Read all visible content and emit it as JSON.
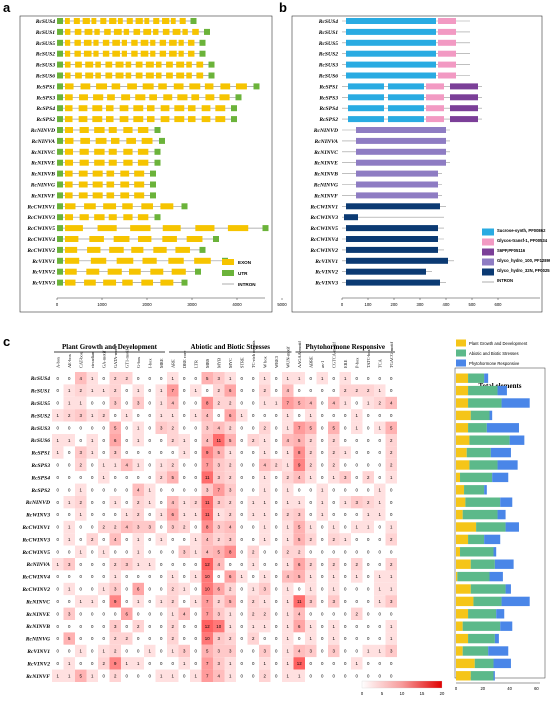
{
  "panel_a": {
    "letter": "a",
    "genes": [
      "RcSUS4",
      "RcSUS1",
      "RcSUS5",
      "RcSUS2",
      "RcSUS3",
      "RcSUS6",
      "RcSPS1",
      "RcSPS3",
      "RcSPS4",
      "RcSPS2",
      "RcNINVD",
      "RcNINVA",
      "RcNINVC",
      "RcNINVE",
      "RcNINVB",
      "RcNINVG",
      "RcNINVF",
      "RcCWINV1",
      "RcCWINV3",
      "RcCWINV5",
      "RcCWINV4",
      "RcCWINV2",
      "RcVINV1",
      "RcVINV2",
      "RcVINV3"
    ],
    "legend": [
      {
        "label": "EXON",
        "color": "#F6C400"
      },
      {
        "label": "UTR",
        "color": "#6BB33A"
      },
      {
        "label": "INTRON",
        "color": "#888888"
      }
    ],
    "axis_ticks": [
      "0",
      "1000",
      "2000",
      "3000",
      "4000",
      "5000"
    ],
    "colors": {
      "exon": "#F6C400",
      "utr": "#6BB33A",
      "intron": "#9a9a9a"
    }
  },
  "panel_b": {
    "letter": "b",
    "genes": [
      "RcSUS4",
      "RcSUS1",
      "RcSUS5",
      "RcSUS2",
      "RcSUS3",
      "RcSUS6",
      "RcSPS1",
      "RcSPS3",
      "RcSPS4",
      "RcSPS2",
      "RcNINVD",
      "RcNINVA",
      "RcNINVC",
      "RcNINVE",
      "RcNINVB",
      "RcNINVG",
      "RcNINVF",
      "RcCWINV1",
      "RcCWINV3",
      "RcCWINV5",
      "RcCWINV4",
      "RcCWINV2",
      "RcVINV1",
      "RcVINV2",
      "RcVINV3"
    ],
    "legend": [
      {
        "label": "Sucrose-synth, PF00862",
        "color": "#29ABE2"
      },
      {
        "label": "Glycos-transf-1, PF00534",
        "color": "#F29AC3"
      },
      {
        "label": "S6PP,PF05116",
        "color": "#7B3F98"
      },
      {
        "label": "Glyco_hydro_100, PF12899",
        "color": "#8E7CC3"
      },
      {
        "label": "Glyco_hydro_32N, PF00251",
        "color": "#0B3A73"
      },
      {
        "label": "INTRON",
        "color": "#888888"
      }
    ],
    "axis_ticks": [
      "0",
      "100",
      "200",
      "300",
      "400",
      "500",
      "600"
    ]
  },
  "panel_c": {
    "letter": "c",
    "groups": [
      "Plant Growth and Development",
      "Abiotic and Biotic Stresses",
      "Phytohormone Responsive"
    ],
    "columns": [
      "A-box",
      "AE-box",
      "CAT-box",
      "circadian",
      "GA-motif",
      "GATA-motif",
      "GT1-motif",
      "G-box",
      "I-box",
      "MRE",
      "ARE",
      "DRE core",
      "LTR",
      "MBS",
      "MYB",
      "MYC",
      "STRE",
      "TC-rich repeats",
      "W box",
      "WRE3",
      "WUN-motif",
      "AAGAA-motif",
      "ABRE",
      "as-1",
      "CGTCA-motif",
      "ERE",
      "P-box",
      "TATC-box",
      "TCA",
      "TGACG-motif"
    ],
    "rows": [
      {
        "gene": "RcSUS4",
        "values": [
          0,
          0,
          4,
          1,
          0,
          2,
          2,
          0,
          0,
          0,
          1,
          0,
          0,
          5,
          3,
          1,
          0,
          0,
          1,
          0,
          1,
          1,
          0,
          1,
          0,
          1,
          0,
          0,
          0,
          0
        ]
      },
      {
        "gene": "RcSUS1",
        "values": [
          0,
          1,
          2,
          1,
          1,
          2,
          0,
          1,
          0,
          1,
          7,
          0,
          1,
          0,
          2,
          6,
          0,
          0,
          2,
          0,
          4,
          0,
          0,
          0,
          0,
          2,
          2,
          2,
          1,
          0
        ]
      },
      {
        "gene": "RcSUS5",
        "values": [
          0,
          1,
          1,
          0,
          0,
          3,
          0,
          3,
          0,
          1,
          4,
          0,
          0,
          8,
          2,
          2,
          0,
          0,
          1,
          1,
          7,
          5,
          4,
          0,
          4,
          1,
          0,
          1,
          2,
          4
        ]
      },
      {
        "gene": "RcSUS2",
        "values": [
          1,
          2,
          3,
          1,
          2,
          0,
          1,
          0,
          0,
          1,
          1,
          0,
          1,
          4,
          0,
          6,
          1,
          0,
          0,
          0,
          1,
          0,
          1,
          0,
          0,
          0,
          1,
          0,
          0,
          0
        ]
      },
      {
        "gene": "RcSUS3",
        "values": [
          0,
          0,
          0,
          0,
          0,
          5,
          0,
          1,
          0,
          3,
          2,
          0,
          0,
          3,
          4,
          2,
          0,
          0,
          2,
          0,
          1,
          7,
          5,
          0,
          5,
          0,
          1,
          0,
          1,
          5
        ]
      },
      {
        "gene": "RcSUS6",
        "values": [
          1,
          1,
          0,
          1,
          0,
          6,
          0,
          1,
          0,
          0,
          2,
          1,
          0,
          4,
          11,
          5,
          0,
          2,
          1,
          0,
          4,
          5,
          2,
          0,
          2,
          0,
          0,
          0,
          0,
          2
        ]
      },
      {
        "gene": "RcSPS1",
        "values": [
          1,
          0,
          3,
          1,
          0,
          3,
          0,
          0,
          0,
          0,
          0,
          1,
          0,
          9,
          5,
          1,
          0,
          0,
          1,
          0,
          1,
          8,
          2,
          0,
          2,
          1,
          0,
          0,
          0,
          2
        ]
      },
      {
        "gene": "RcSPS3",
        "values": [
          0,
          0,
          2,
          0,
          1,
          1,
          4,
          1,
          0,
          1,
          2,
          0,
          0,
          7,
          3,
          2,
          0,
          0,
          4,
          2,
          1,
          9,
          2,
          0,
          2,
          0,
          0,
          0,
          0,
          2
        ]
      },
      {
        "gene": "RcSPS4",
        "values": [
          0,
          0,
          0,
          0,
          1,
          0,
          0,
          0,
          0,
          2,
          5,
          0,
          0,
          11,
          3,
          2,
          0,
          0,
          1,
          0,
          2,
          4,
          1,
          0,
          1,
          3,
          0,
          2,
          0,
          1
        ]
      },
      {
        "gene": "RcSPS2",
        "values": [
          0,
          0,
          1,
          0,
          0,
          0,
          0,
          4,
          1,
          0,
          0,
          0,
          0,
          3,
          7,
          3,
          0,
          0,
          1,
          0,
          1,
          0,
          0,
          1,
          0,
          0,
          0,
          0,
          1,
          0
        ]
      },
      {
        "gene": "RcNINVD",
        "values": [
          0,
          1,
          2,
          0,
          0,
          1,
          0,
          2,
          1,
          0,
          4,
          1,
          2,
          11,
          3,
          2,
          0,
          1,
          1,
          0,
          1,
          1,
          0,
          1,
          0,
          1,
          3,
          2,
          1,
          0
        ]
      },
      {
        "gene": "RcWINV3",
        "values": [
          0,
          0,
          1,
          0,
          0,
          0,
          1,
          2,
          0,
          1,
          6,
          1,
          1,
          11,
          1,
          2,
          0,
          1,
          1,
          0,
          2,
          3,
          0,
          1,
          0,
          0,
          0,
          1,
          1,
          0
        ]
      },
      {
        "gene": "RcCWINV1",
        "values": [
          0,
          1,
          0,
          0,
          2,
          2,
          4,
          3,
          3,
          0,
          3,
          2,
          0,
          8,
          3,
          4,
          0,
          0,
          1,
          0,
          1,
          5,
          1,
          0,
          1,
          0,
          1,
          1,
          0,
          1
        ]
      },
      {
        "gene": "RcCWINV3",
        "values": [
          0,
          1,
          0,
          2,
          0,
          4,
          0,
          1,
          0,
          1,
          0,
          0,
          1,
          4,
          2,
          3,
          0,
          0,
          1,
          0,
          1,
          5,
          2,
          0,
          2,
          1,
          0,
          0,
          0,
          2
        ]
      },
      {
        "gene": "RcCWINV5",
        "values": [
          0,
          0,
          1,
          0,
          1,
          0,
          0,
          1,
          0,
          0,
          0,
          3,
          1,
          4,
          5,
          8,
          0,
          2,
          0,
          0,
          2,
          2,
          0,
          0,
          0,
          0,
          0,
          0,
          0,
          0
        ]
      },
      {
        "gene": "RcNINVA",
        "values": [
          1,
          3,
          0,
          0,
          0,
          2,
          3,
          1,
          1,
          0,
          0,
          0,
          0,
          12,
          4,
          0,
          0,
          1,
          0,
          0,
          1,
          6,
          2,
          0,
          2,
          0,
          2,
          0,
          0,
          2
        ]
      },
      {
        "gene": "RcCWINV4",
        "values": [
          0,
          0,
          0,
          0,
          0,
          1,
          0,
          0,
          0,
          0,
          1,
          0,
          1,
          10,
          0,
          6,
          1,
          0,
          1,
          0,
          4,
          5,
          1,
          0,
          1,
          0,
          1,
          0,
          1,
          1
        ]
      },
      {
        "gene": "RcCWINV2",
        "values": [
          0,
          1,
          0,
          0,
          1,
          3,
          0,
          6,
          0,
          0,
          2,
          1,
          0,
          10,
          6,
          2,
          0,
          1,
          3,
          0,
          1,
          0,
          1,
          0,
          1,
          0,
          0,
          0,
          1,
          1
        ]
      },
      {
        "gene": "RcNINVC",
        "values": [
          0,
          0,
          1,
          1,
          0,
          9,
          0,
          1,
          0,
          1,
          2,
          0,
          1,
          7,
          2,
          5,
          0,
          2,
          1,
          0,
          1,
          11,
          3,
          0,
          3,
          0,
          0,
          0,
          1,
          3
        ]
      },
      {
        "gene": "RcNINVE",
        "values": [
          0,
          3,
          0,
          0,
          0,
          0,
          6,
          0,
          0,
          0,
          1,
          4,
          0,
          7,
          3,
          1,
          0,
          2,
          2,
          0,
          1,
          4,
          0,
          0,
          0,
          0,
          2,
          0,
          0,
          0
        ]
      },
      {
        "gene": "RcNINVB",
        "values": [
          0,
          0,
          0,
          0,
          0,
          3,
          0,
          2,
          0,
          0,
          2,
          0,
          0,
          12,
          10,
          1,
          0,
          1,
          1,
          0,
          1,
          6,
          1,
          0,
          1,
          0,
          0,
          0,
          0,
          1
        ]
      },
      {
        "gene": "RcNINVG",
        "values": [
          0,
          5,
          0,
          0,
          0,
          2,
          2,
          0,
          0,
          0,
          2,
          0,
          0,
          10,
          3,
          2,
          0,
          2,
          0,
          0,
          1,
          0,
          1,
          0,
          1,
          0,
          0,
          0,
          0,
          1
        ]
      },
      {
        "gene": "RcVINV1",
        "values": [
          0,
          0,
          1,
          0,
          1,
          2,
          0,
          0,
          1,
          0,
          1,
          3,
          0,
          5,
          3,
          3,
          0,
          0,
          3,
          0,
          1,
          4,
          3,
          0,
          3,
          0,
          0,
          1,
          1,
          3
        ]
      },
      {
        "gene": "RcVINV2",
        "values": [
          0,
          1,
          0,
          0,
          2,
          9,
          1,
          1,
          0,
          0,
          0,
          1,
          0,
          7,
          3,
          1,
          0,
          0,
          1,
          0,
          1,
          12,
          0,
          0,
          0,
          0,
          1,
          0,
          0,
          0
        ]
      },
      {
        "gene": "RcNINVF",
        "values": [
          1,
          1,
          5,
          1,
          0,
          2,
          0,
          0,
          0,
          1,
          1,
          0,
          1,
          7,
          4,
          1,
          0,
          0,
          2,
          0,
          1,
          1,
          0,
          0,
          0,
          0,
          0,
          0,
          0,
          0
        ]
      }
    ],
    "colorbar_ticks": [
      "0",
      "5",
      "10",
      "15",
      "20"
    ],
    "legend": [
      {
        "label": "Plant Growth and Development",
        "color": "#F5C518"
      },
      {
        "label": "Abiotic and Biotic Stresses",
        "color": "#5CB98A"
      },
      {
        "label": "Phytohormone Responsive",
        "color": "#4A86E8"
      }
    ],
    "bar_title": "Total elements",
    "bar_ticks": [
      "0",
      "20",
      "40",
      "60"
    ]
  }
}
